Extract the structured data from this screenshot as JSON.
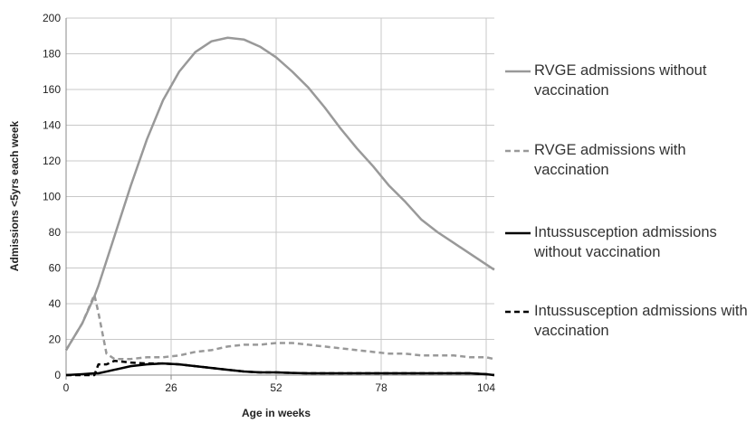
{
  "chart_data": {
    "type": "line",
    "x_label": "Age in weeks",
    "y_label": "Admissions <5yrs each week",
    "x": [
      0,
      4,
      7,
      8,
      10,
      12,
      16,
      20,
      24,
      28,
      32,
      36,
      40,
      44,
      48,
      52,
      56,
      60,
      64,
      68,
      72,
      76,
      80,
      84,
      88,
      92,
      96,
      100,
      104,
      106
    ],
    "series": [
      {
        "name": "RVGE admissions without vaccination",
        "color": "#999999",
        "line_style": "solid",
        "values": [
          14,
          29,
          44,
          50,
          64,
          78,
          106,
          132,
          154,
          170,
          181,
          187,
          189,
          188,
          184,
          178,
          170,
          161,
          150,
          138,
          127,
          117,
          106,
          97,
          87,
          80,
          74,
          68,
          62,
          59
        ]
      },
      {
        "name": "RVGE admissions with vaccination",
        "color": "#999999",
        "line_style": "dashed",
        "values": [
          14,
          29,
          45,
          35,
          12,
          9,
          9,
          10,
          10,
          11,
          13,
          14,
          16,
          17,
          17,
          18,
          18,
          17,
          16,
          15,
          14,
          13,
          12,
          12,
          11,
          11,
          11,
          10,
          10,
          9
        ]
      },
      {
        "name": "Intussusception admissions without vaccination",
        "color": "#000000",
        "line_style": "solid",
        "values": [
          0,
          0.5,
          1,
          1,
          2,
          3,
          5,
          6,
          6.5,
          6,
          5,
          4,
          3,
          2,
          1.5,
          1.5,
          1.2,
          1,
          1,
          1,
          1,
          1,
          1,
          1,
          1,
          1,
          1,
          1,
          0.5,
          0
        ]
      },
      {
        "name": "Intussusception admissions with vaccination",
        "color": "#000000",
        "line_style": "dashed",
        "values": [
          0,
          0,
          0,
          6,
          6,
          8,
          7,
          6.5,
          6.5,
          6,
          5,
          4,
          3,
          2,
          1.5,
          1.5,
          1.2,
          1,
          1,
          1,
          1,
          1,
          1,
          1,
          1,
          1,
          1,
          1,
          0.5,
          0
        ]
      }
    ],
    "xlim": [
      0,
      106
    ],
    "xticks": [
      0,
      26,
      52,
      78,
      104
    ],
    "ylim": [
      0,
      200
    ],
    "yticks": [
      0,
      20,
      40,
      60,
      80,
      100,
      120,
      140,
      160,
      180,
      200
    ],
    "grid": true
  }
}
